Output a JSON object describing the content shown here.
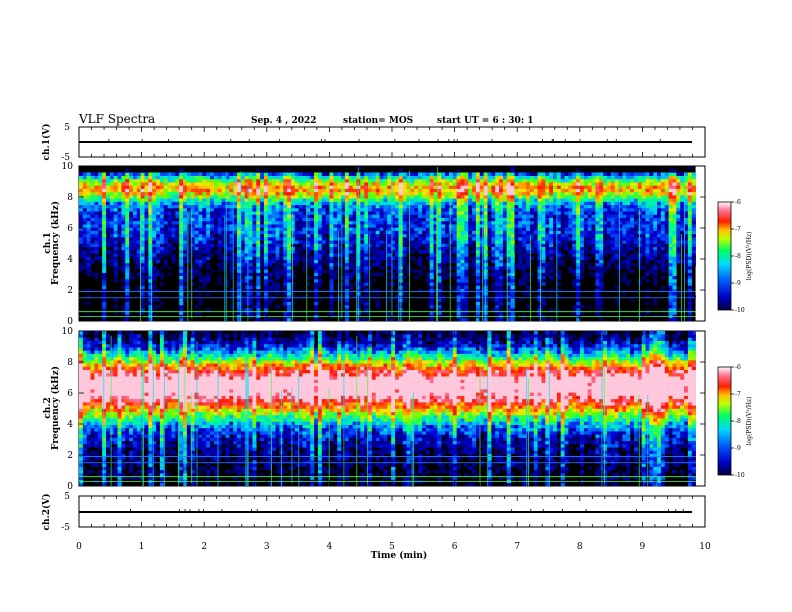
{
  "header": {
    "title": "VLF Spectra",
    "date": "Sep. 4 , 2022",
    "station": "station= MOS",
    "start": "start  UT =  6 : 30: 1"
  },
  "chart_data": [
    {
      "type": "line",
      "panel": "ch1-waveform",
      "ylabel": "ch.1(V)",
      "yticks": [
        "5",
        "-5"
      ],
      "ylim": [
        -5,
        5
      ],
      "baseline_value": 0
    },
    {
      "type": "heatmap",
      "panel": "ch1-spectrogram",
      "ylabel_top": "ch.1",
      "ylabel": "Frequency (kHz)",
      "yticks": [
        "0",
        "2",
        "4",
        "6",
        "8",
        "10"
      ],
      "ylim": [
        0,
        10
      ],
      "colorbar": {
        "label": "log(PSD)(V²/Hz)",
        "ticks": [
          "-6",
          "-7",
          "-8",
          "-9",
          "-10"
        ],
        "range": [
          -10,
          -6
        ]
      },
      "description_of_values": "broadband emission strongest 4-9 kHz, persistent lines near 0.3, 0.6, 1.5 kHz"
    },
    {
      "type": "heatmap",
      "panel": "ch2-spectrogram",
      "ylabel_top": "ch.2",
      "ylabel": "Frequency (kHz)",
      "yticks": [
        "0",
        "2",
        "4",
        "6",
        "8",
        "10"
      ],
      "ylim": [
        0,
        10
      ],
      "colorbar": {
        "label": "log(PSD)(V²/Hz)",
        "ticks": [
          "-6",
          "-7",
          "-8",
          "-9",
          "-10"
        ],
        "range": [
          -10,
          -6
        ]
      },
      "description_of_values": "intense band 5-8 kHz (log PSD ~ -6.5), weaker 3-9.5 kHz"
    },
    {
      "type": "line",
      "panel": "ch2-waveform",
      "ylabel": "ch.2(V)",
      "yticks": [
        "5",
        "-5"
      ],
      "ylim": [
        -5,
        5
      ],
      "baseline_value": 0
    }
  ],
  "xaxis": {
    "label": "Time (min)",
    "ticks": [
      "0",
      "1",
      "2",
      "3",
      "4",
      "5",
      "6",
      "7",
      "8",
      "9",
      "10"
    ],
    "range": [
      0,
      10
    ],
    "data_end_min": 9.85
  },
  "colors": {
    "colormap": [
      "#000000",
      "#0000c8",
      "#0050ff",
      "#00c8ff",
      "#00ff80",
      "#80ff00",
      "#ffe000",
      "#ff6000",
      "#ff0000",
      "#ff6080",
      "#ffd0e0"
    ]
  }
}
